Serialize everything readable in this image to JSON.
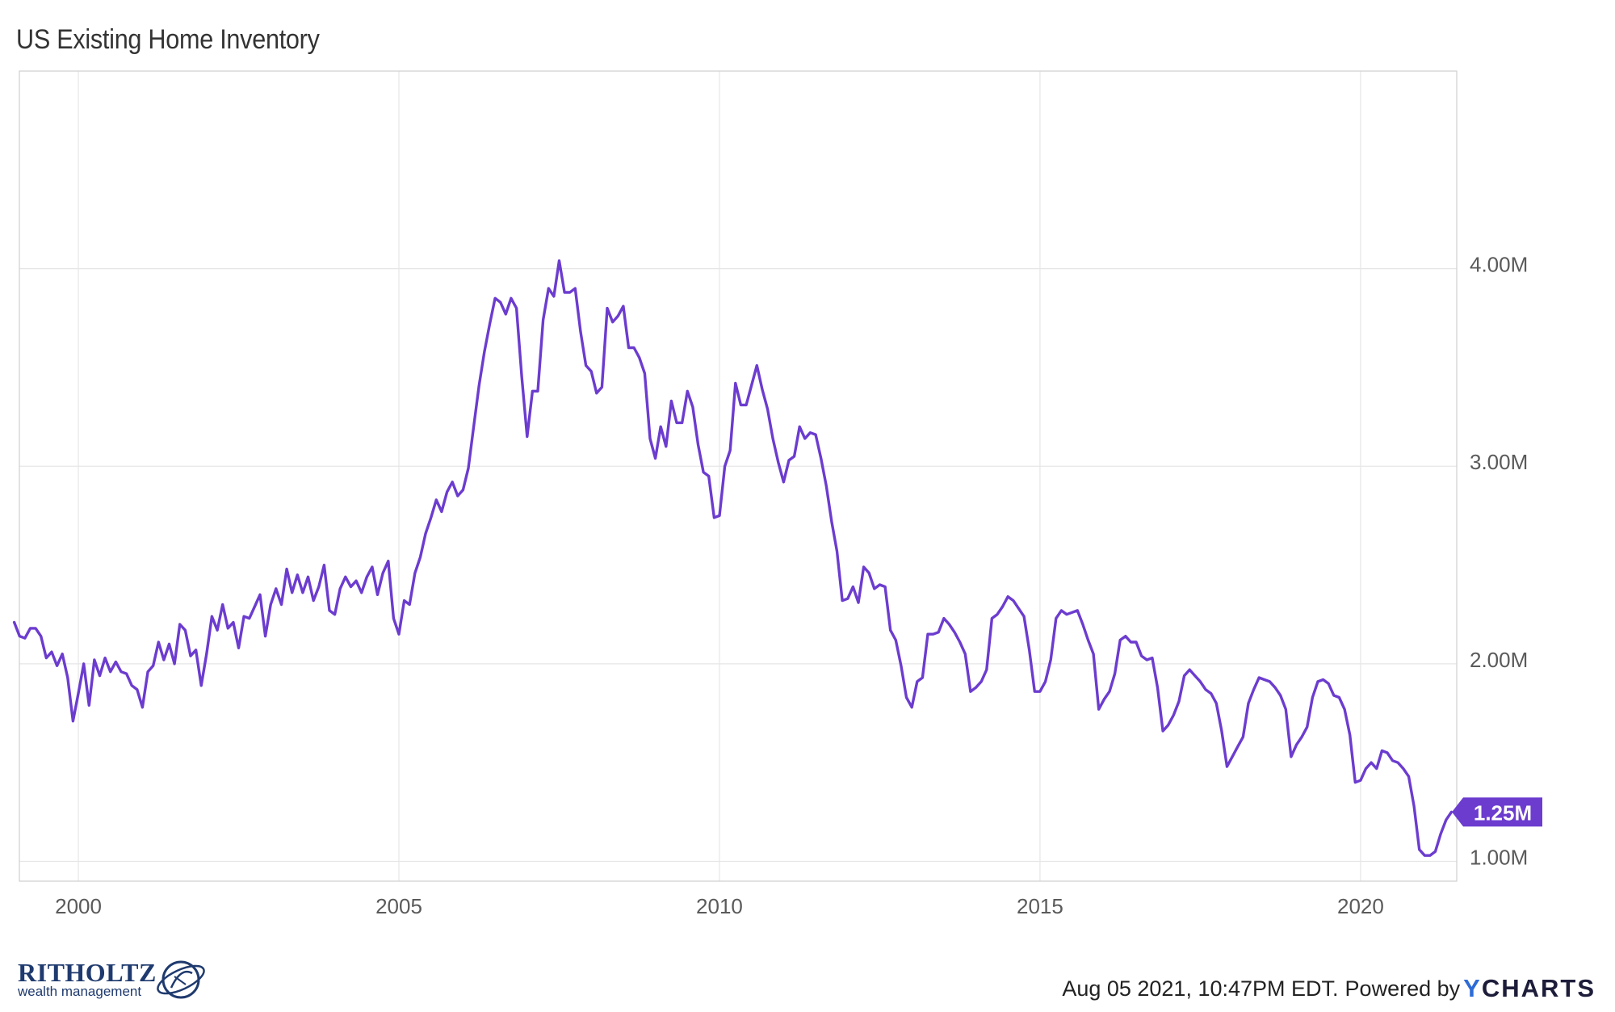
{
  "title": "US Existing Home Inventory",
  "footer": {
    "timestamp": "Aug 05 2021, 10:47PM EDT.",
    "powered_by": "Powered by",
    "brand_first": "Y",
    "brand_rest": "CHARTS"
  },
  "logo": {
    "name": "RITHOLTZ",
    "tagline": "wealth management",
    "icon": "globe-swirl-icon"
  },
  "colors": {
    "series": "#6c3ccf",
    "grid": "#e6e6e6",
    "axis": "#cfcfcf"
  },
  "chart_data": {
    "type": "line",
    "title": "US Existing Home Inventory",
    "xlabel": "",
    "ylabel": "",
    "xlim": [
      1999.08,
      2021.5
    ],
    "ylim": [
      0.9,
      5.0
    ],
    "x_ticks": [
      2000,
      2005,
      2010,
      2015,
      2020
    ],
    "x_tick_labels": [
      "2000",
      "2005",
      "2010",
      "2015",
      "2020"
    ],
    "y_ticks": [
      1.0,
      2.0,
      3.0,
      4.0
    ],
    "y_tick_labels": [
      "1.00M",
      "2.00M",
      "3.00M",
      "4.00M"
    ],
    "grid": true,
    "last_value_label": "1.25M",
    "start": "1999-01",
    "frequency": "monthly",
    "series": [
      {
        "name": "US Existing Home Inventory",
        "unit": "millions",
        "values": [
          2.21,
          2.14,
          2.13,
          2.18,
          2.18,
          2.14,
          2.03,
          2.06,
          1.99,
          2.05,
          1.93,
          1.71,
          1.85,
          2.0,
          1.79,
          2.02,
          1.94,
          2.03,
          1.96,
          2.01,
          1.96,
          1.95,
          1.89,
          1.87,
          1.78,
          1.96,
          1.99,
          2.11,
          2.02,
          2.1,
          2.0,
          2.2,
          2.17,
          2.04,
          2.07,
          1.89,
          2.05,
          2.24,
          2.17,
          2.3,
          2.18,
          2.21,
          2.08,
          2.24,
          2.23,
          2.29,
          2.35,
          2.14,
          2.3,
          2.38,
          2.3,
          2.48,
          2.36,
          2.45,
          2.36,
          2.44,
          2.32,
          2.39,
          2.5,
          2.27,
          2.25,
          2.38,
          2.44,
          2.39,
          2.42,
          2.36,
          2.44,
          2.49,
          2.35,
          2.46,
          2.52,
          2.23,
          2.15,
          2.32,
          2.3,
          2.46,
          2.54,
          2.66,
          2.74,
          2.83,
          2.77,
          2.87,
          2.92,
          2.85,
          2.88,
          2.99,
          3.2,
          3.41,
          3.58,
          3.72,
          3.85,
          3.83,
          3.77,
          3.85,
          3.8,
          3.45,
          3.15,
          3.38,
          3.38,
          3.74,
          3.9,
          3.86,
          4.04,
          3.88,
          3.88,
          3.9,
          3.68,
          3.51,
          3.48,
          3.37,
          3.4,
          3.8,
          3.73,
          3.76,
          3.81,
          3.6,
          3.6,
          3.55,
          3.47,
          3.14,
          3.04,
          3.2,
          3.1,
          3.33,
          3.22,
          3.22,
          3.38,
          3.3,
          3.11,
          2.97,
          2.95,
          2.74,
          2.75,
          3.0,
          3.08,
          3.42,
          3.31,
          3.31,
          3.41,
          3.51,
          3.39,
          3.29,
          3.14,
          3.02,
          2.92,
          3.03,
          3.05,
          3.2,
          3.14,
          3.17,
          3.16,
          3.04,
          2.9,
          2.72,
          2.57,
          2.32,
          2.33,
          2.39,
          2.31,
          2.49,
          2.46,
          2.38,
          2.4,
          2.39,
          2.17,
          2.12,
          1.99,
          1.83,
          1.78,
          1.91,
          1.93,
          2.15,
          2.15,
          2.16,
          2.23,
          2.2,
          2.16,
          2.11,
          2.05,
          1.86,
          1.88,
          1.91,
          1.97,
          2.23,
          2.25,
          2.29,
          2.34,
          2.32,
          2.28,
          2.24,
          2.07,
          1.86,
          1.86,
          1.91,
          2.02,
          2.23,
          2.27,
          2.25,
          2.26,
          2.27,
          2.2,
          2.12,
          2.05,
          1.77,
          1.82,
          1.86,
          1.95,
          2.12,
          2.14,
          2.11,
          2.11,
          2.04,
          2.02,
          2.03,
          1.88,
          1.66,
          1.69,
          1.74,
          1.81,
          1.94,
          1.97,
          1.94,
          1.91,
          1.87,
          1.85,
          1.8,
          1.66,
          1.48,
          1.53,
          1.58,
          1.63,
          1.8,
          1.87,
          1.93,
          1.92,
          1.91,
          1.88,
          1.84,
          1.77,
          1.53,
          1.59,
          1.63,
          1.68,
          1.83,
          1.91,
          1.92,
          1.9,
          1.84,
          1.83,
          1.77,
          1.64,
          1.4,
          1.41,
          1.47,
          1.5,
          1.47,
          1.56,
          1.55,
          1.51,
          1.5,
          1.47,
          1.43,
          1.28,
          1.06,
          1.03,
          1.03,
          1.05,
          1.14,
          1.21,
          1.25
        ]
      }
    ]
  }
}
